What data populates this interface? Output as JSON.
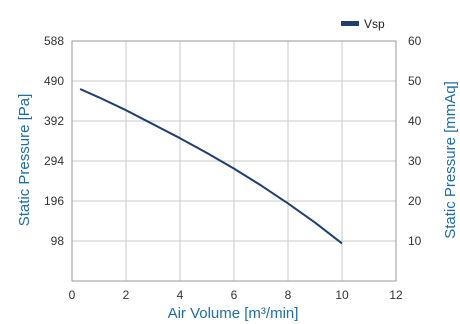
{
  "chart_data": {
    "type": "line",
    "xlabel": "Air Volume [m³/min]",
    "ylabel_left": "Static Pressure [Pa]",
    "ylabel_right": "Static Pressure [mmAq]",
    "xlim": [
      0,
      12
    ],
    "ylim_left": [
      0,
      588
    ],
    "ylim_right": [
      0,
      60
    ],
    "x_ticks": [
      "0",
      "2",
      "4",
      "6",
      "8",
      "10",
      "12"
    ],
    "y_left_ticks": [
      "98",
      "196",
      "294",
      "392",
      "490",
      "588"
    ],
    "y_right_ticks": [
      "10",
      "20",
      "30",
      "40",
      "50",
      "60"
    ],
    "grid": true,
    "legend_position": "top-right",
    "series": [
      {
        "name": "Vsp",
        "x": [
          0.3,
          1,
          2,
          3,
          4,
          5,
          6,
          7,
          8,
          9,
          10
        ],
        "y": [
          48.0,
          45.9,
          42.7,
          39.2,
          35.7,
          32.0,
          28.1,
          23.9,
          19.4,
          14.6,
          9.4
        ]
      }
    ]
  },
  "colors": {
    "series": "#1f3f6e",
    "axis_label": "#1f6da3",
    "grid": "#c8c8c8",
    "frame": "#9a9a9a"
  }
}
